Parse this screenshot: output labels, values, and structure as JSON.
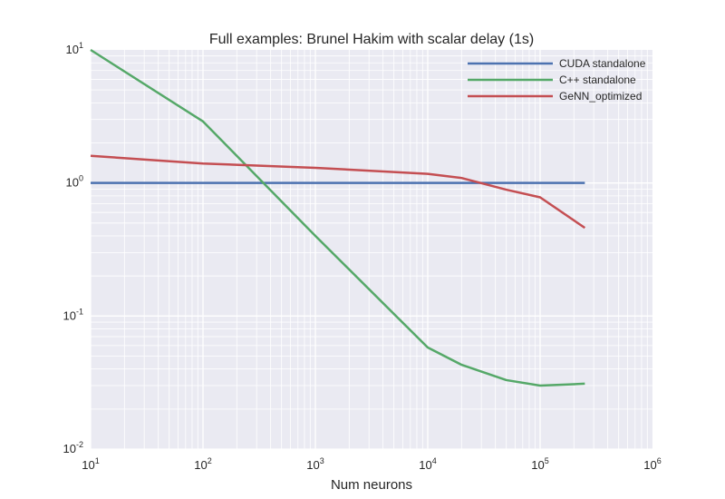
{
  "chart_data": {
    "type": "line",
    "title": "Full examples: Brunel Hakim with scalar delay (1s)",
    "xlabel": "Num neurons",
    "ylabel": "",
    "xscale": "log",
    "yscale": "log",
    "xlim": [
      10,
      1000000
    ],
    "ylim": [
      0.01,
      10
    ],
    "grid": true,
    "legend_position": "top-right",
    "x_ticks": [
      {
        "base": "10",
        "exp": "1"
      },
      {
        "base": "10",
        "exp": "2"
      },
      {
        "base": "10",
        "exp": "3"
      },
      {
        "base": "10",
        "exp": "4"
      },
      {
        "base": "10",
        "exp": "5"
      },
      {
        "base": "10",
        "exp": "6"
      }
    ],
    "y_ticks": [
      {
        "base": "10",
        "exp": "1"
      },
      {
        "base": "10",
        "exp": "0"
      },
      {
        "base": "10",
        "exp": "-1"
      },
      {
        "base": "10",
        "exp": "-2"
      }
    ],
    "series": [
      {
        "name": "CUDA standalone",
        "color": "#4c72b0",
        "x": [
          10,
          100,
          1000,
          10000,
          20000,
          50000,
          100000,
          250000
        ],
        "y": [
          1.0,
          1.0,
          1.0,
          1.0,
          1.0,
          1.0,
          1.0,
          1.0
        ]
      },
      {
        "name": "C++ standalone",
        "color": "#55a868",
        "x": [
          10,
          100,
          1000,
          10000,
          20000,
          50000,
          100000,
          250000
        ],
        "y": [
          10.0,
          2.9,
          0.4,
          0.058,
          0.043,
          0.033,
          0.03,
          0.031
        ]
      },
      {
        "name": "GeNN_optimized",
        "color": "#c44e52",
        "x": [
          10,
          100,
          1000,
          10000,
          20000,
          50000,
          100000,
          250000
        ],
        "y": [
          1.6,
          1.4,
          1.3,
          1.17,
          1.09,
          0.89,
          0.78,
          0.46
        ]
      }
    ]
  }
}
